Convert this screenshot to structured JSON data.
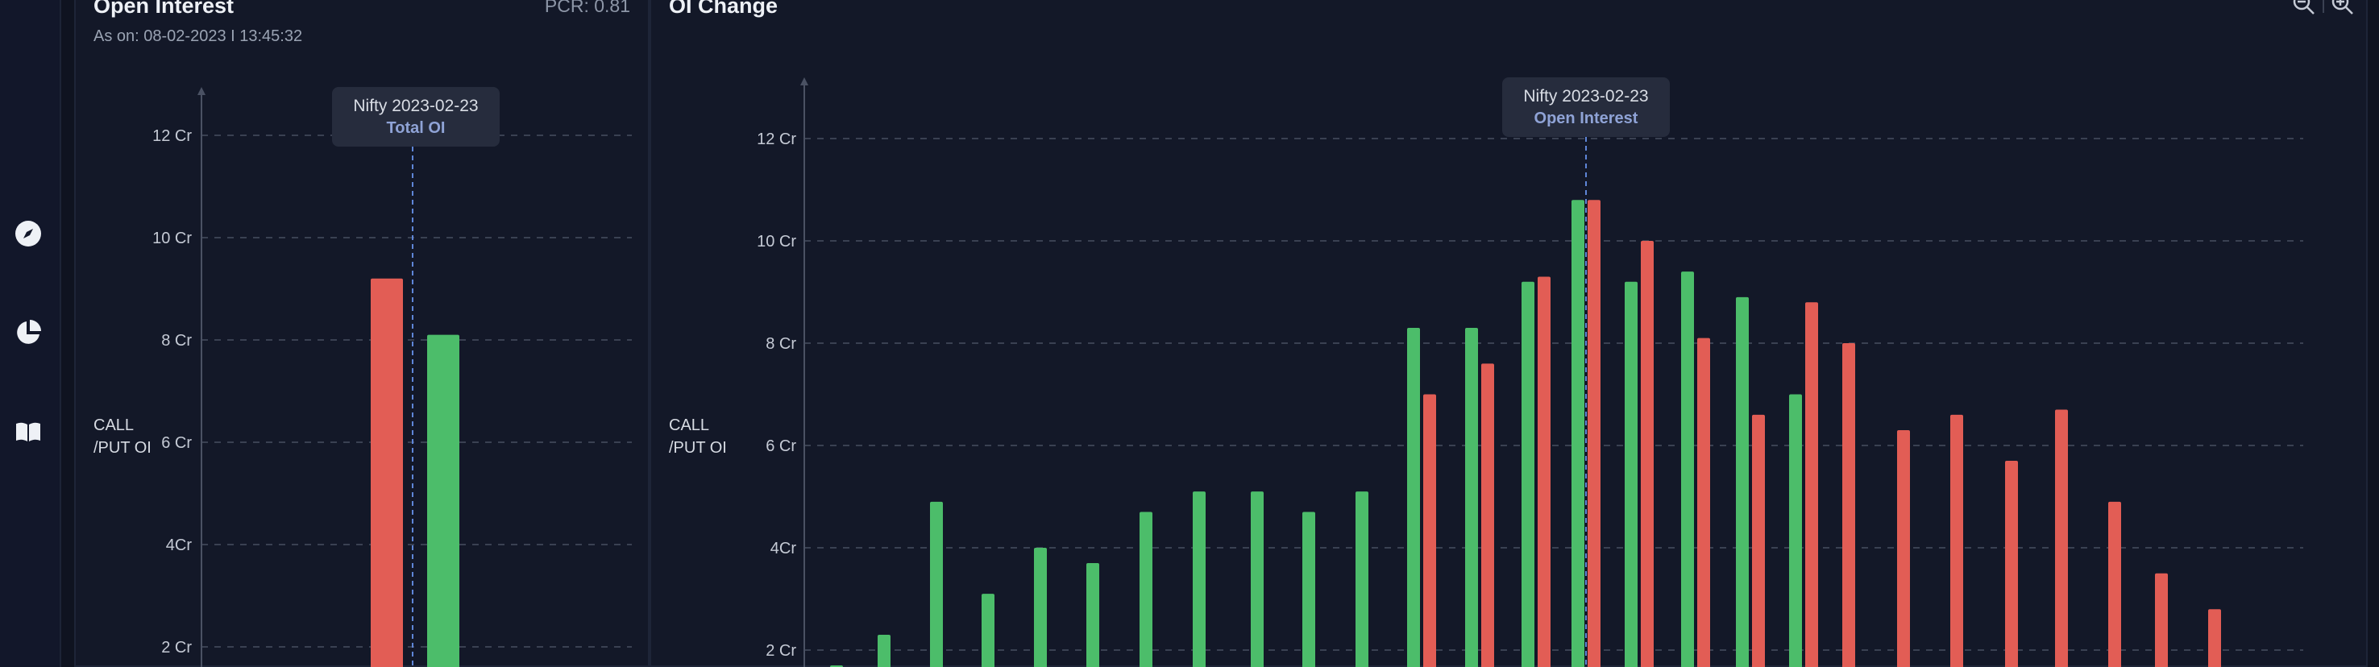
{
  "sidebar": {
    "items": [
      {
        "name": "compass-icon"
      },
      {
        "name": "pie-chart-icon"
      },
      {
        "name": "book-icon"
      }
    ]
  },
  "left_panel": {
    "title": "Open Interest",
    "pcr": "PCR: 0.81",
    "as_on": "As on: 08-02-2023 I 13:45:32",
    "ylabel": [
      "CALL",
      "/PUT OI"
    ],
    "tooltip": {
      "title": "Nifty 2023-02-23",
      "subtitle": "Total OI"
    }
  },
  "right_panel": {
    "title": "OI Change",
    "ylabel": [
      "CALL",
      "/PUT OI"
    ],
    "tooltip": {
      "title": "Nifty 2023-02-23",
      "subtitle": "Open Interest"
    },
    "zoom_out_icon": "zoom-out-icon",
    "zoom_in_icon": "zoom-in-icon"
  },
  "colors": {
    "put": "#e25d55",
    "call": "#4cbd6a",
    "grid": "#3a4152",
    "axis": "#4a5163",
    "crosshair": "#5f86d8"
  },
  "chart_data": [
    {
      "type": "bar",
      "title": "Open Interest",
      "ylabel": "CALL /PUT OI",
      "ylim": [
        0,
        13
      ],
      "yticks": [
        "2 Cr",
        "4Cr",
        "6 Cr",
        "8 Cr",
        "10 Cr",
        "12 Cr"
      ],
      "yticks_values": [
        2,
        4,
        6,
        8,
        10,
        12
      ],
      "grid": true,
      "categories": [
        "Nifty 2023-02-23"
      ],
      "series": [
        {
          "values": [
            9.2
          ],
          "color": "#e25d55"
        },
        {
          "values": [
            8.1
          ],
          "color": "#4cbd6a"
        }
      ]
    },
    {
      "type": "bar",
      "title": "OI Change",
      "ylabel": "CALL /PUT OI",
      "ylim": [
        0,
        13
      ],
      "yticks": [
        "2 Cr",
        "4Cr",
        "6 Cr",
        "8 Cr",
        "10 Cr",
        "12 Cr"
      ],
      "yticks_values": [
        2,
        4,
        6,
        8,
        10,
        12
      ],
      "grid": true,
      "series": [
        {
          "values": [
            1.7,
            2.3,
            4.9,
            3.1,
            4.0,
            3.7,
            4.7,
            5.1,
            5.1,
            4.7,
            5.1,
            8.3,
            8.3,
            9.2,
            10.8,
            9.2,
            9.4,
            8.9,
            7.0
          ],
          "color": "#4cbd6a"
        },
        {
          "values": [
            7.0,
            7.6,
            9.3,
            10.8,
            10.0,
            8.1,
            6.6,
            8.8,
            8.0,
            6.3,
            6.6,
            5.7,
            6.7,
            4.9,
            3.5,
            2.8
          ],
          "color": "#e25d55"
        }
      ]
    }
  ]
}
